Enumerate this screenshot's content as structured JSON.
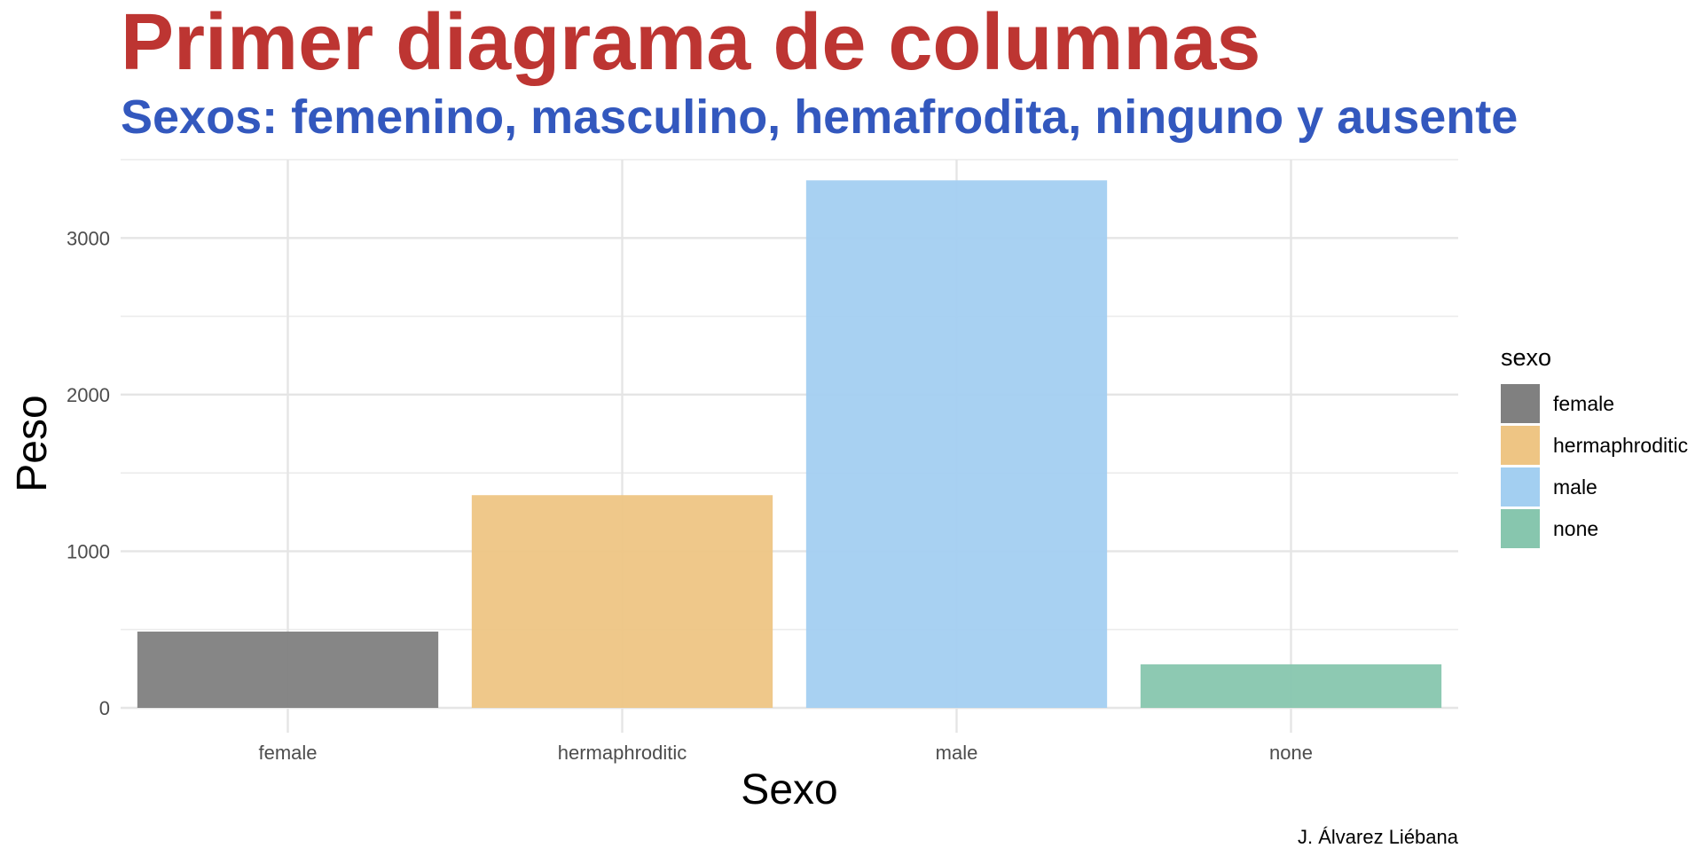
{
  "chart_data": {
    "type": "bar",
    "title": "Primer diagrama de columnas",
    "subtitle": "Sexos: femenino, masculino, hemafrodita, ninguno y ausente",
    "xlabel": "Sexo",
    "ylabel": "Peso",
    "caption": "J. Álvarez Liébana",
    "categories": [
      "female",
      "hermaphroditic",
      "male",
      "none"
    ],
    "values": [
      487,
      1358,
      3368,
      278
    ],
    "ylim": [
      0,
      3500
    ],
    "yticks": [
      0,
      1000,
      2000,
      3000
    ],
    "grid": true,
    "legend": {
      "title": "sexo",
      "placement": "right",
      "entries": [
        "female",
        "hermaphroditic",
        "male",
        "none"
      ]
    },
    "colors": {
      "bars": [
        "#808080",
        "#eec584",
        "#a3cff1",
        "#87c6ae"
      ],
      "title": "#bd3532",
      "subtitle": "#3358be",
      "grid": "#e5e5e5"
    }
  }
}
